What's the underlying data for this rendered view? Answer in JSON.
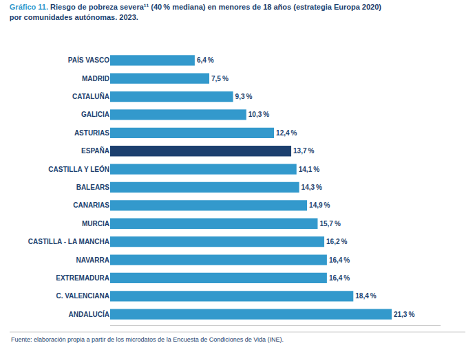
{
  "chart_data": {
    "type": "bar",
    "orientation": "horizontal",
    "title": "Gráfico 11. Riesgo de pobreza severa¹¹ (40 % mediana) en menores de 18 años (estrategia Europa 2020)\npor comunidades autónomas. 2023.",
    "annotations": [
      "Fuente: elaboración propia a partir de los microdatos de la Encuesta de Condiciones de Vida (INE)."
    ],
    "categories": [
      "ANDALUCÍA",
      "C. VALENCIANA",
      "EXTREMADURA",
      "NAVARRA",
      "CASTILLA - LA MANCHA",
      "MURCIA",
      "CANARIAS",
      "BALEARS",
      "CASTILLA Y LEÓN",
      "ESPAÑA",
      "ASTURIAS",
      "GALICIA",
      "CATALUÑA",
      "MADRID",
      "PAÍS VASCO"
    ],
    "values": [
      21.3,
      18.4,
      16.4,
      16.4,
      16.2,
      15.7,
      14.9,
      14.3,
      14.1,
      13.7,
      12.4,
      10.3,
      9.3,
      7.5,
      6.4
    ],
    "value_labels": [
      "21,3 %",
      "18,4 %",
      "16,4 %",
      "16,4 %",
      "16,2 %",
      "15,7 %",
      "14,9 %",
      "14,3 %",
      "14,1 %",
      "13,7 %",
      "12,4 %",
      "10,3 %",
      "9,3 %",
      "7,5 %",
      "6,4 %"
    ],
    "colors": [
      "#3399cc",
      "#3399cc",
      "#3399cc",
      "#3399cc",
      "#3399cc",
      "#3399cc",
      "#3399cc",
      "#3399cc",
      "#3399cc",
      "#1c3f6e",
      "#3399cc",
      "#3399cc",
      "#3399cc",
      "#3399cc",
      "#3399cc"
    ],
    "xlim": [
      0,
      25
    ],
    "data_labels": true,
    "tick_labels": "y",
    "grid": false
  }
}
